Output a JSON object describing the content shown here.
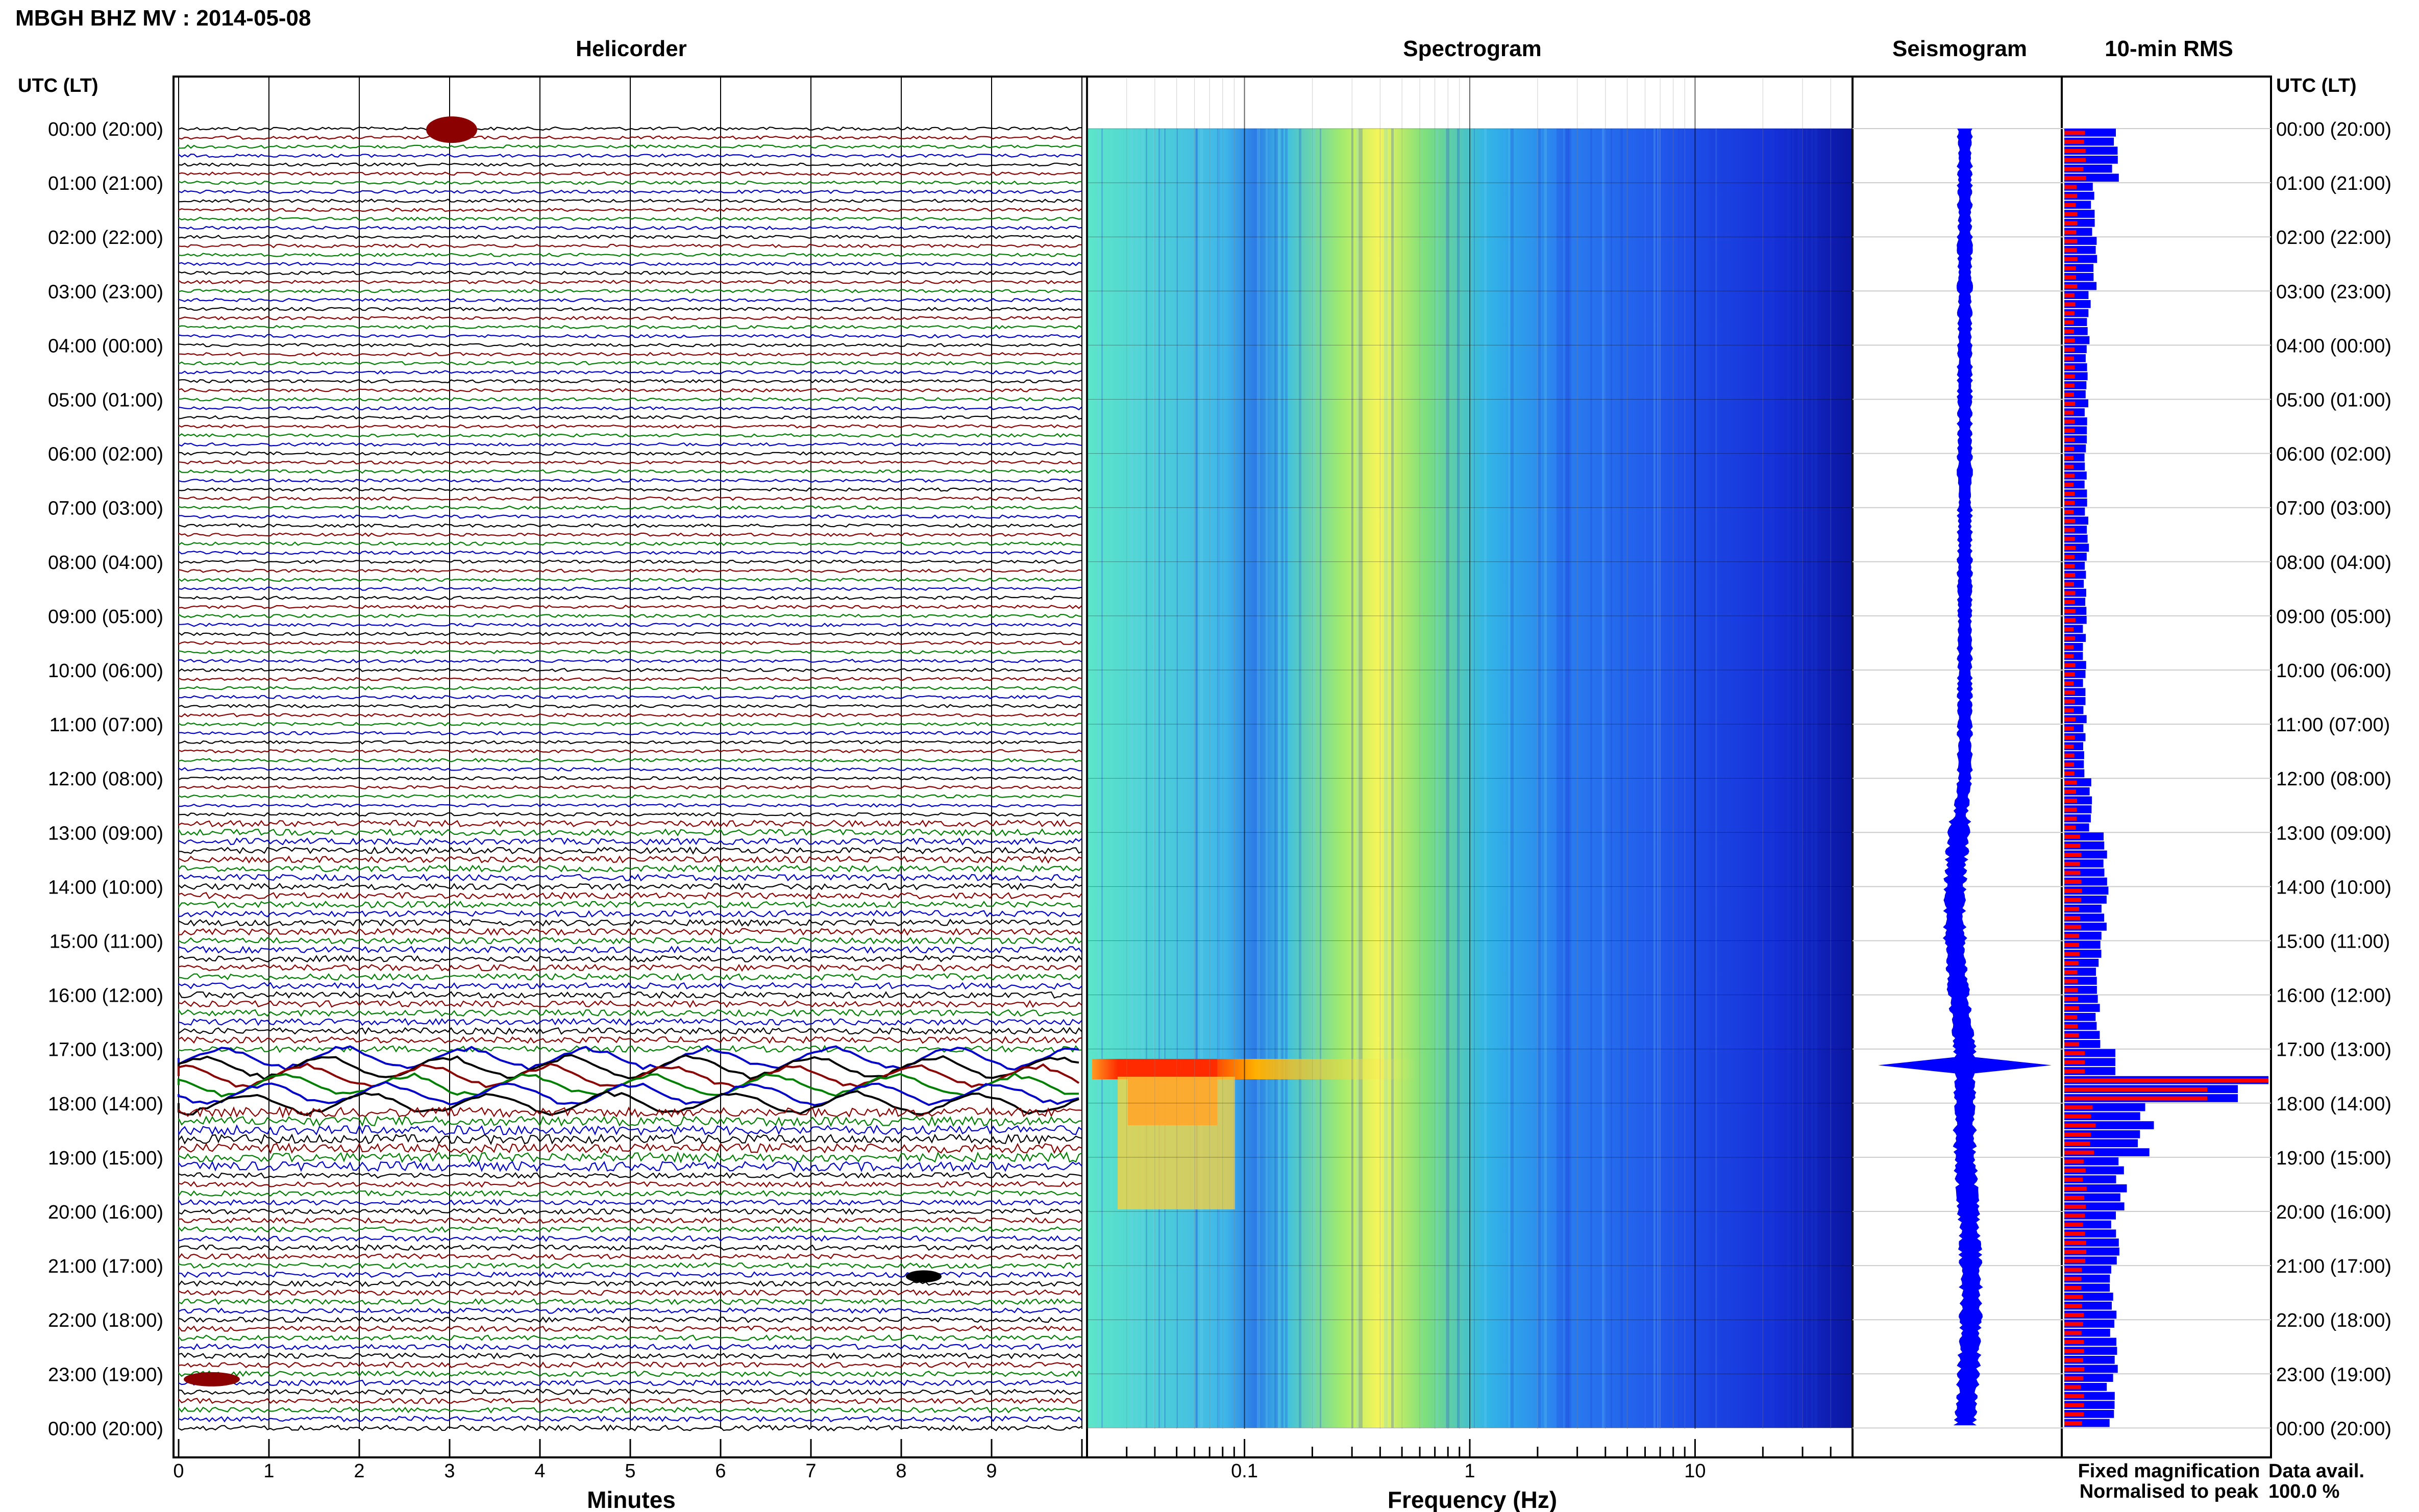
{
  "title": "MBGH BHZ MV : 2014-05-08",
  "panels": {
    "helicorder": "Helicorder",
    "spectrogram": "Spectrogram",
    "seismogram": "Seismogram",
    "rms": "10-min RMS"
  },
  "time_axis_label": "UTC (LT)",
  "time_labels": [
    "00:00 (20:00)",
    "01:00 (21:00)",
    "02:00 (22:00)",
    "03:00 (23:00)",
    "04:00 (00:00)",
    "05:00 (01:00)",
    "06:00 (02:00)",
    "07:00 (03:00)",
    "08:00 (04:00)",
    "09:00 (05:00)",
    "10:00 (06:00)",
    "11:00 (07:00)",
    "12:00 (08:00)",
    "13:00 (09:00)",
    "14:00 (10:00)",
    "15:00 (11:00)",
    "16:00 (12:00)",
    "17:00 (13:00)",
    "18:00 (14:00)",
    "19:00 (15:00)",
    "20:00 (16:00)",
    "21:00 (17:00)",
    "22:00 (18:00)",
    "23:00 (19:00)",
    "00:00 (20:00)"
  ],
  "helicorder_xlabel": "Minutes",
  "helicorder_ticks": [
    "0",
    "1",
    "2",
    "3",
    "4",
    "5",
    "6",
    "7",
    "8",
    "9"
  ],
  "spectrogram_xlabel": "Frequency (Hz)",
  "spectrogram_ticks": [
    "0.1",
    "1",
    "10"
  ],
  "legend": {
    "fixed": "Fixed magnification",
    "normalised": "Normalised to peak",
    "fixed_color": "#0000ff",
    "normalised_color": "#ff0000"
  },
  "data_avail_label": "Data avail.",
  "data_avail_value": "100.0 %",
  "colors": {
    "trace_cycle": [
      "#000000",
      "#8b0000",
      "#008000",
      "#0000cd"
    ],
    "seismogram": "#0000ff",
    "rms_fixed": "#0000ff",
    "rms_normalised": "#ff0000"
  },
  "chart_data": [
    {
      "type": "line",
      "panel": "Helicorder",
      "xlabel": "Minutes",
      "x_range": [
        0,
        10
      ],
      "y_range_hours_utc": [
        0,
        24
      ],
      "lines_per_hour": 6,
      "event_minutes": [
        {
          "utc": "00:00",
          "minute": 3.1,
          "note": "event"
        },
        {
          "utc": "17:30",
          "minute": 0,
          "note": "large long-period signal 17:20–18:00"
        },
        {
          "utc": "23:10",
          "minute": 0.3,
          "note": "event"
        }
      ]
    },
    {
      "type": "heatmap",
      "panel": "Spectrogram",
      "xlabel": "Frequency (Hz)",
      "x_scale": "log",
      "x_range": [
        0.02,
        50
      ],
      "peak_band_hz": [
        0.3,
        0.5
      ],
      "event_utc": "17:20",
      "event_band_hz": [
        0.03,
        0.1
      ]
    },
    {
      "type": "area",
      "panel": "Seismogram",
      "peak_utc": "17:20"
    },
    {
      "type": "bar",
      "panel": "10-min RMS",
      "x": [
        "00:00",
        "01:00",
        "02:00",
        "03:00",
        "04:00",
        "05:00",
        "06:00",
        "07:00",
        "08:00",
        "09:00",
        "10:00",
        "11:00",
        "12:00",
        "13:00",
        "14:00",
        "15:00",
        "16:00",
        "17:00",
        "18:00",
        "19:00",
        "20:00",
        "21:00",
        "22:00",
        "23:00"
      ],
      "series": [
        {
          "name": "Fixed magnification",
          "values": [
            0.25,
            0.14,
            0.15,
            0.12,
            0.11,
            0.11,
            0.11,
            0.11,
            0.1,
            0.1,
            0.1,
            0.1,
            0.13,
            0.2,
            0.2,
            0.17,
            0.17,
            1.0,
            0.4,
            0.28,
            0.25,
            0.24,
            0.24,
            0.23
          ]
        },
        {
          "name": "Normalised to peak",
          "values": [
            0.1,
            0.06,
            0.06,
            0.05,
            0.05,
            0.05,
            0.05,
            0.05,
            0.05,
            0.05,
            0.05,
            0.05,
            0.06,
            0.08,
            0.08,
            0.07,
            0.07,
            1.0,
            0.14,
            0.1,
            0.1,
            0.09,
            0.09,
            0.09
          ]
        }
      ]
    }
  ]
}
